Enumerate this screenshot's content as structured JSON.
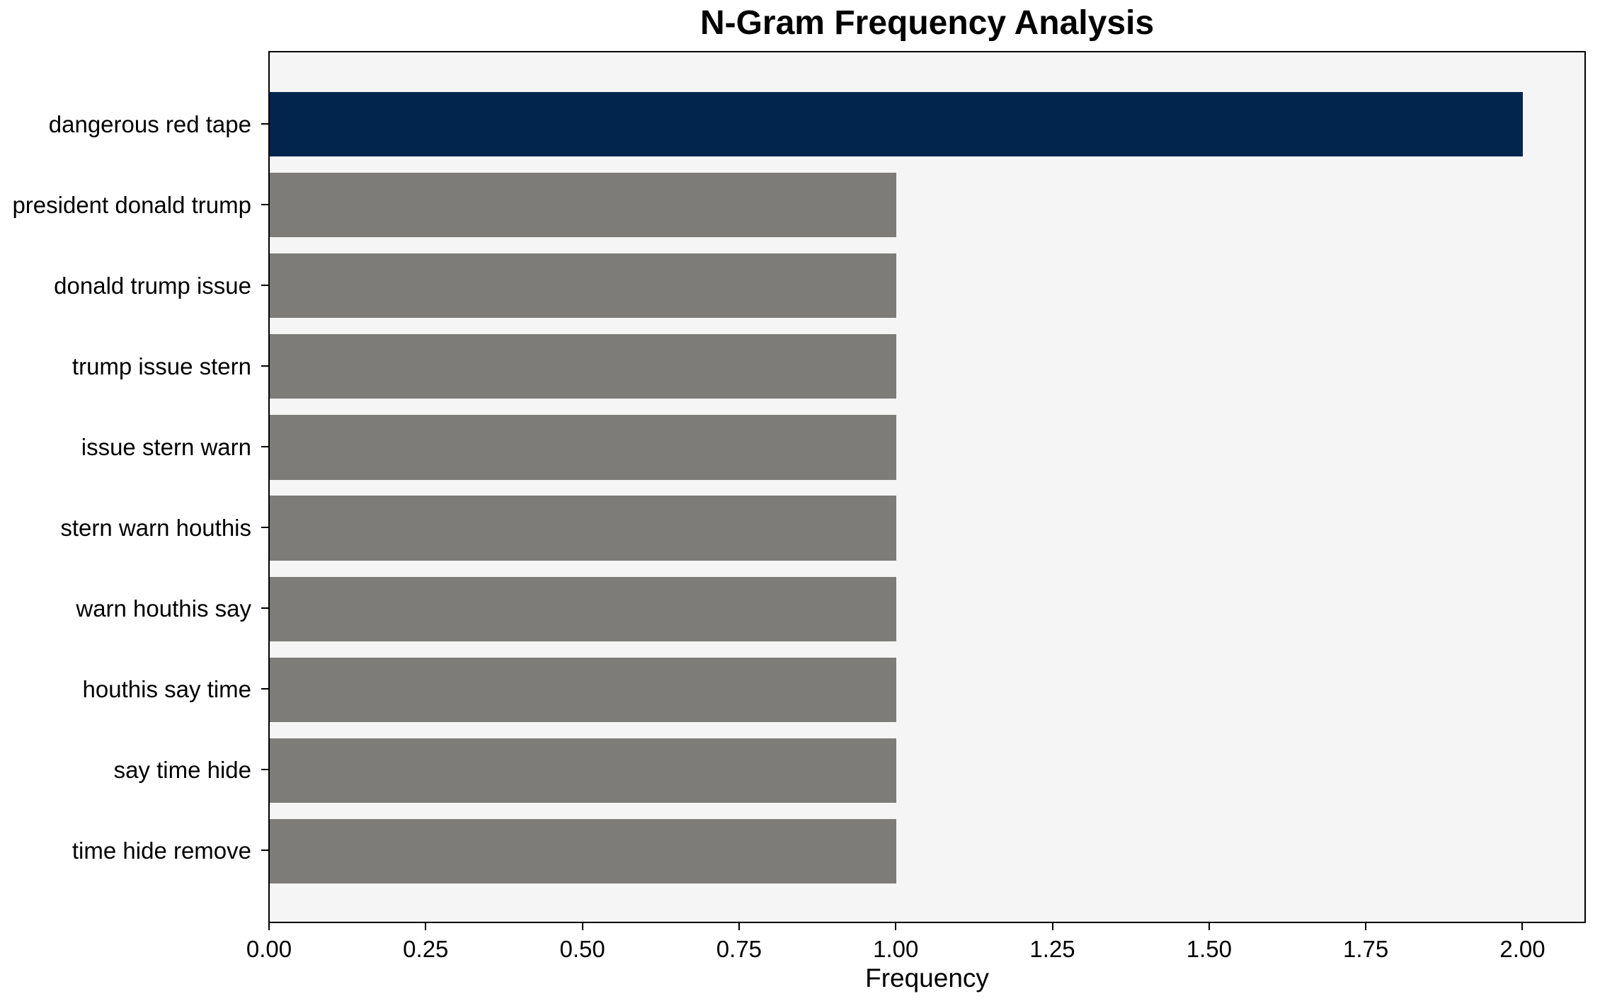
{
  "chart_data": {
    "type": "bar",
    "orientation": "horizontal",
    "title": "N-Gram Frequency Analysis",
    "xlabel": "Frequency",
    "ylabel": "",
    "categories": [
      "dangerous red tape",
      "president donald trump",
      "donald trump issue",
      "trump issue stern",
      "issue stern warn",
      "stern warn houthis",
      "warn houthis say",
      "houthis say time",
      "say time hide",
      "time hide remove"
    ],
    "values": [
      2,
      1,
      1,
      1,
      1,
      1,
      1,
      1,
      1,
      1
    ],
    "bar_colors": [
      "#02254d",
      "#7d7c79",
      "#7d7c79",
      "#7d7c79",
      "#7d7c79",
      "#7d7c79",
      "#7d7c79",
      "#7d7c79",
      "#7d7c79",
      "#7d7c79"
    ],
    "xlim": [
      0,
      2.1
    ],
    "xticks": [
      0,
      0.25,
      0.5,
      0.75,
      1.0,
      1.25,
      1.5,
      1.75,
      2.0
    ],
    "xtick_labels": [
      "0.00",
      "0.25",
      "0.50",
      "0.75",
      "1.00",
      "1.25",
      "1.50",
      "1.75",
      "2.00"
    ],
    "grid": false,
    "legend_position": "none",
    "colors": {
      "highlight_bar": "#02254d",
      "bar": "#7d7c79",
      "plot_background": "#f5f5f5",
      "figure_background": "#ffffff",
      "spine": "#000000",
      "text": "#000000"
    }
  }
}
